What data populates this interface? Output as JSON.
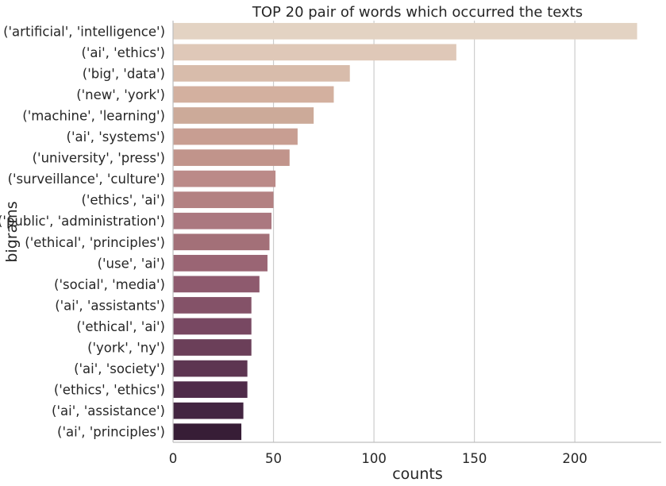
{
  "chart_data": {
    "type": "bar",
    "orientation": "horizontal",
    "title": "TOP 20 pair of words which occurred the texts",
    "xlabel": "counts",
    "ylabel": "bigrams",
    "xlim": [
      0,
      243
    ],
    "xticks": [
      0,
      50,
      100,
      150,
      200
    ],
    "grid": "vertical",
    "categories": [
      "('artificial', 'intelligence')",
      "('ai', 'ethics')",
      "('big', 'data')",
      "('new', 'york')",
      "('machine', 'learning')",
      "('ai', 'systems')",
      "('university', 'press')",
      "('surveillance', 'culture')",
      "('ethics', 'ai')",
      "('public', 'administration')",
      "('ethical', 'principles')",
      "('use', 'ai')",
      "('social', 'media')",
      "('ai', 'assistants')",
      "('ethical', 'ai')",
      "('york', 'ny')",
      "('ai', 'society')",
      "('ethics', 'ethics')",
      "('ai', 'assistance')",
      "('ai', 'principles')"
    ],
    "values": [
      231,
      141,
      88,
      80,
      70,
      62,
      58,
      51,
      50,
      49,
      48,
      47,
      43,
      39,
      39,
      39,
      37,
      37,
      35,
      34
    ],
    "colors": [
      "#e3d3c3",
      "#dfc8b8",
      "#d8bcab",
      "#d3b09f",
      "#ccaa99",
      "#c89e92",
      "#c1948b",
      "#bb8a88",
      "#b38182",
      "#ab7880",
      "#a37078",
      "#9a6574",
      "#8e5a6e",
      "#845268",
      "#784862",
      "#6b3f59",
      "#5d3551",
      "#4f2b49",
      "#432541",
      "#371d36"
    ]
  }
}
